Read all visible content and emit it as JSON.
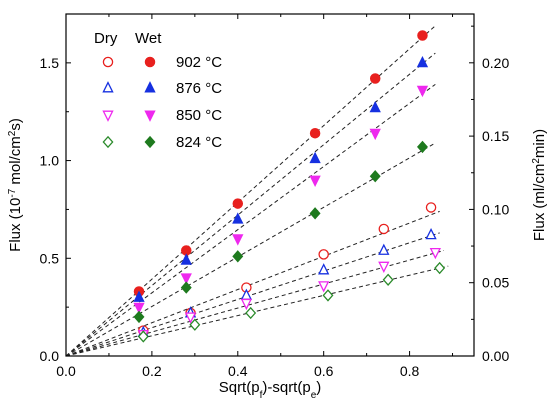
{
  "chart_data": {
    "type": "scatter",
    "xlabel": "Sqrt(p_f)-sqrt(p_e)",
    "xlabel_parts": [
      "Sqrt(p",
      "f",
      ")-sqrt(p",
      "e",
      ")"
    ],
    "ylabel_left": "Flux (10^-7 mol/cm^2 s)",
    "ylabel_left_parts": [
      "Flux (10",
      "-7",
      " mol/cm",
      "2",
      "s)"
    ],
    "ylabel_right": "Flux (ml/cm^2 min)",
    "ylabel_right_parts": [
      "Flux (ml/cm",
      "2",
      "min)"
    ],
    "xlim": [
      0,
      0.95
    ],
    "ylim_left": [
      0,
      1.75
    ],
    "ylim_right": [
      0,
      0.2333
    ],
    "xticks": [
      "0.0",
      "0.2",
      "0.4",
      "0.6",
      "0.8"
    ],
    "xtick_values": [
      0,
      0.2,
      0.4,
      0.6,
      0.8
    ],
    "yticks_left": [
      "0.0",
      "0.5",
      "1.0",
      "1.5"
    ],
    "ytick_values_left": [
      0,
      0.5,
      1.0,
      1.5
    ],
    "yticks_right": [
      "0.00",
      "0.05",
      "0.10",
      "0.15",
      "0.20"
    ],
    "ytick_values_right": [
      0,
      0.05,
      0.1,
      0.15,
      0.2
    ],
    "legend": {
      "header_dry": "Dry",
      "header_wet": "Wet",
      "placement": "top-left",
      "entries": [
        "902 °C",
        "876 °C",
        "850 °C",
        "824 °C"
      ]
    },
    "series": [
      {
        "name": "Dry 902 °C",
        "marker": "circle-open",
        "color": "#e8201e",
        "x": [
          0.18,
          0.29,
          0.42,
          0.6,
          0.74,
          0.85
        ],
        "y": [
          0.13,
          0.22,
          0.35,
          0.52,
          0.65,
          0.76
        ]
      },
      {
        "name": "Dry 876 °C",
        "marker": "triangle-up-open",
        "color": "#1630e0",
        "x": [
          0.18,
          0.29,
          0.42,
          0.6,
          0.74,
          0.85
        ],
        "y": [
          0.12,
          0.22,
          0.31,
          0.44,
          0.54,
          0.62
        ]
      },
      {
        "name": "Dry 850 °C",
        "marker": "triangle-down-open",
        "color": "#ee28ee",
        "x": [
          0.18,
          0.29,
          0.42,
          0.6,
          0.74,
          0.86
        ],
        "y": [
          0.11,
          0.2,
          0.27,
          0.36,
          0.46,
          0.53
        ]
      },
      {
        "name": "Dry 824 °C",
        "marker": "diamond-open",
        "color": "#2a8a2a",
        "x": [
          0.18,
          0.3,
          0.43,
          0.61,
          0.75,
          0.87
        ],
        "y": [
          0.1,
          0.16,
          0.22,
          0.31,
          0.39,
          0.45
        ]
      },
      {
        "name": "Wet 902 °C",
        "marker": "circle-filled",
        "color": "#e8201e",
        "x": [
          0.17,
          0.28,
          0.4,
          0.58,
          0.72,
          0.83
        ],
        "y": [
          0.33,
          0.54,
          0.78,
          1.14,
          1.42,
          1.64
        ]
      },
      {
        "name": "Wet 876 °C",
        "marker": "triangle-up-filled",
        "color": "#1630e0",
        "x": [
          0.17,
          0.28,
          0.4,
          0.58,
          0.72,
          0.83
        ],
        "y": [
          0.3,
          0.49,
          0.7,
          1.01,
          1.27,
          1.5
        ]
      },
      {
        "name": "Wet 850 °C",
        "marker": "triangle-down-filled",
        "color": "#ee28ee",
        "x": [
          0.17,
          0.28,
          0.4,
          0.58,
          0.72,
          0.83
        ],
        "y": [
          0.25,
          0.4,
          0.6,
          0.9,
          1.14,
          1.36
        ]
      },
      {
        "name": "Wet 824 °C",
        "marker": "diamond-filled",
        "color": "#1e7a1e",
        "x": [
          0.17,
          0.28,
          0.4,
          0.58,
          0.72,
          0.83
        ],
        "y": [
          0.2,
          0.35,
          0.51,
          0.73,
          0.92,
          1.07
        ]
      }
    ],
    "fit_lines": [
      {
        "series": "Wet 902 °C",
        "x": [
          0,
          0.86
        ],
        "y": [
          0,
          1.69
        ]
      },
      {
        "series": "Wet 876 °C",
        "x": [
          0,
          0.86
        ],
        "y": [
          0,
          1.55
        ]
      },
      {
        "series": "Wet 850 °C",
        "x": [
          0,
          0.86
        ],
        "y": [
          0,
          1.39
        ]
      },
      {
        "series": "Wet 824 °C",
        "x": [
          0,
          0.86
        ],
        "y": [
          0,
          1.09
        ]
      },
      {
        "series": "Dry 902 °C",
        "x": [
          0,
          0.87
        ],
        "y": [
          0,
          0.74
        ]
      },
      {
        "series": "Dry 876 °C",
        "x": [
          0,
          0.87
        ],
        "y": [
          0,
          0.63
        ]
      },
      {
        "series": "Dry 850 °C",
        "x": [
          0,
          0.88
        ],
        "y": [
          0,
          0.54
        ]
      },
      {
        "series": "Dry 824 °C",
        "x": [
          0,
          0.89
        ],
        "y": [
          0,
          0.46
        ]
      }
    ],
    "grid": false
  }
}
